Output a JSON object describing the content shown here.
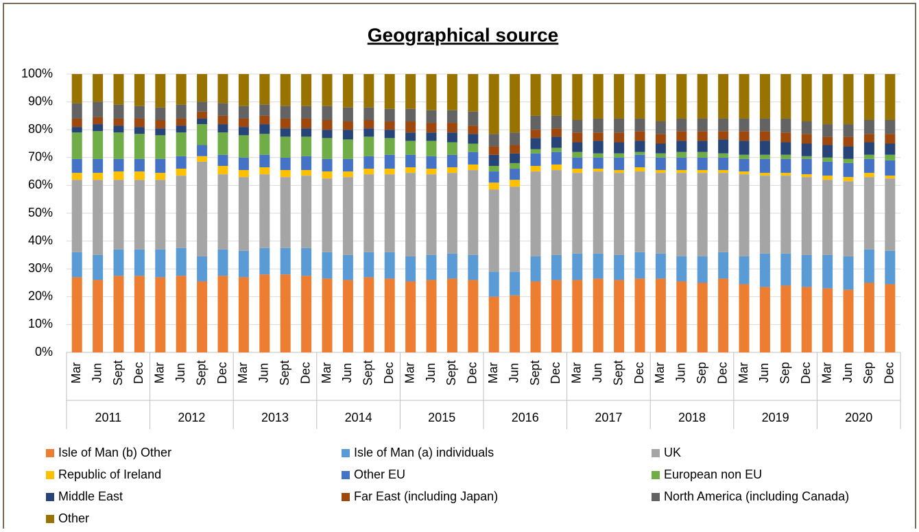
{
  "chart_data": {
    "type": "stacked_bar",
    "title": "Geographical source",
    "categories": [
      "Mar",
      "Jun",
      "Sept",
      "Dec",
      "Mar",
      "Jun",
      "Sept",
      "Dec",
      "Mar",
      "Jun",
      "Sept",
      "Dec",
      "Mar",
      "Jun",
      "Sept",
      "Dec",
      "Mar",
      "Jun",
      "Sept",
      "Dec",
      "Mar",
      "Jun",
      "Sept",
      "Dec",
      "Mar",
      "Jun",
      "Sept",
      "Dec",
      "Mar",
      "Jun",
      "Sep",
      "Dec",
      "Mar",
      "Jun",
      "Sep",
      "Dec",
      "Mar",
      "Jun",
      "Sep",
      "Dec"
    ],
    "groups": [
      "2011",
      "2012",
      "2013",
      "2014",
      "2015",
      "2016",
      "2017",
      "2018",
      "2019",
      "2020"
    ],
    "ylim": [
      0,
      100
    ],
    "yticks": [
      {
        "value": 0,
        "label": "0%"
      },
      {
        "value": 10,
        "label": "10%"
      },
      {
        "value": 20,
        "label": "20%"
      },
      {
        "value": 30,
        "label": "30%"
      },
      {
        "value": 40,
        "label": "40%"
      },
      {
        "value": 50,
        "label": "50%"
      },
      {
        "value": 60,
        "label": "60%"
      },
      {
        "value": 70,
        "label": "70%"
      },
      {
        "value": 80,
        "label": "80%"
      },
      {
        "value": 90,
        "label": "90%"
      },
      {
        "value": 100,
        "label": "100%"
      }
    ],
    "grid": true,
    "legend": "bottom",
    "series": [
      {
        "name": "Isle of Man (b) Other",
        "color": "#ed7d31",
        "values": [
          27,
          26,
          27.5,
          27.5,
          27,
          27.5,
          25.5,
          27.5,
          27,
          28,
          28,
          27.5,
          26.5,
          26,
          27,
          26.5,
          25.5,
          26,
          26.5,
          26,
          20,
          20.5,
          25.5,
          26,
          26,
          26.5,
          26,
          26.5,
          26.5,
          25.5,
          25,
          26.5,
          24.5,
          23.5,
          24,
          23.5,
          23,
          22.5,
          25,
          24.5
        ]
      },
      {
        "name": "Isle of Man (a) individuals",
        "color": "#5b9bd5",
        "values": [
          9,
          9,
          9.5,
          9.5,
          10,
          10,
          9,
          9.5,
          9.5,
          9.5,
          9.5,
          10,
          9.5,
          9,
          9,
          9.5,
          9,
          9,
          9,
          9,
          9,
          8.5,
          9,
          9,
          9.5,
          9,
          9,
          9.5,
          9,
          9,
          9.5,
          9.5,
          10,
          12,
          11.5,
          11.5,
          12,
          12,
          12,
          12
        ]
      },
      {
        "name": "UK",
        "color": "#a5a5a5",
        "values": [
          26,
          27,
          25,
          25,
          25,
          26,
          34,
          27,
          26.5,
          26.5,
          25.5,
          26,
          26.5,
          28,
          28,
          28,
          30,
          29,
          29,
          30.5,
          29.5,
          30.5,
          30.5,
          30.5,
          29,
          29.5,
          29.5,
          29,
          29,
          30,
          30,
          28.5,
          29.5,
          28,
          28,
          28,
          27,
          27,
          26,
          26
        ]
      },
      {
        "name": "Republic of Ireland",
        "color": "#ffc000",
        "values": [
          2.5,
          2.5,
          3,
          3,
          2.5,
          2.5,
          2,
          3,
          2.5,
          2.5,
          2.5,
          2,
          2.5,
          2,
          2,
          2,
          2,
          2,
          2,
          2,
          2.5,
          2.5,
          2,
          2,
          1.5,
          1,
          1,
          1.5,
          1,
          1,
          1,
          1,
          1,
          1,
          1,
          1,
          1.5,
          1.5,
          1.5,
          1
        ]
      },
      {
        "name": "Other EU",
        "color": "#4472c4",
        "values": [
          5,
          5,
          4.5,
          4.5,
          5,
          4.5,
          4,
          4,
          4.5,
          4.5,
          4.5,
          5,
          4.5,
          4.5,
          4.5,
          5,
          4.5,
          4.5,
          4.5,
          4.5,
          4,
          4,
          4.5,
          4.5,
          4,
          4,
          4.5,
          4.5,
          4.5,
          4.5,
          4.5,
          4.5,
          4.5,
          5,
          5,
          5.5,
          5,
          5,
          5,
          5.5
        ]
      },
      {
        "name": "European non EU",
        "color": "#70ad47",
        "values": [
          9.5,
          10,
          9.5,
          9,
          8.5,
          8.5,
          7.5,
          8,
          8,
          7.5,
          7.5,
          7,
          7.5,
          7,
          7,
          6,
          5,
          5.5,
          4.5,
          3,
          2,
          2,
          1.5,
          1.5,
          2,
          1.5,
          1.5,
          1,
          1.5,
          2,
          2,
          1.5,
          1.5,
          1.5,
          1.5,
          1,
          1.5,
          1.5,
          1.5,
          2
        ]
      },
      {
        "name": "Middle East",
        "color": "#264478",
        "values": [
          2,
          2.5,
          2.5,
          2.5,
          2.5,
          2.5,
          2,
          3,
          3,
          3.5,
          3,
          3,
          3,
          3.5,
          3,
          3,
          3,
          3,
          3.5,
          3.5,
          4,
          3.5,
          4,
          4,
          3.5,
          4.5,
          4,
          4,
          3.5,
          4,
          4,
          5,
          5,
          5,
          4.5,
          4.5,
          4.5,
          4.5,
          4.5,
          4
        ]
      },
      {
        "name": "Far East (including Japan)",
        "color": "#9e480e",
        "values": [
          3,
          2.5,
          2.5,
          3,
          3,
          2.5,
          2.5,
          3,
          3,
          3,
          3.5,
          3.5,
          3.5,
          3,
          3,
          3,
          4,
          3.5,
          3.5,
          3,
          3,
          3,
          3,
          3,
          3.5,
          3,
          3.5,
          3.5,
          3.5,
          3.5,
          3.5,
          3,
          3.5,
          3.5,
          3.5,
          3.5,
          3,
          3.5,
          3,
          3.5
        ]
      },
      {
        "name": "North America (including Canada)",
        "color": "#636363",
        "values": [
          5.5,
          5.5,
          5,
          4.5,
          4.5,
          5,
          3.5,
          4.5,
          4.5,
          4,
          4.5,
          4.5,
          5,
          5,
          4.5,
          4.5,
          4.5,
          4.5,
          4.5,
          5,
          4.5,
          4.5,
          5,
          4.5,
          4.5,
          5,
          5,
          4.5,
          4.5,
          4.5,
          4.5,
          4.5,
          4.5,
          4.5,
          5,
          4.5,
          4.5,
          4.5,
          5,
          5
        ]
      },
      {
        "name": "Other",
        "color": "#997300",
        "values": [
          10.5,
          10,
          11,
          11.5,
          12,
          11,
          10,
          10.5,
          11.5,
          11,
          11.5,
          11.5,
          11.5,
          12,
          12,
          12.5,
          12.5,
          13,
          13,
          13.5,
          21.5,
          21,
          15,
          15,
          16.5,
          16,
          16,
          16,
          17,
          16,
          16,
          16,
          16,
          16,
          16,
          17,
          18,
          18,
          16.5,
          16.5
        ]
      }
    ]
  }
}
